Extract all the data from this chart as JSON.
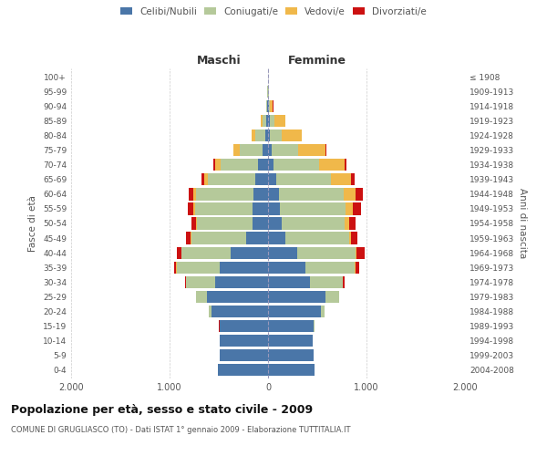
{
  "age_groups": [
    "0-4",
    "5-9",
    "10-14",
    "15-19",
    "20-24",
    "25-29",
    "30-34",
    "35-39",
    "40-44",
    "45-49",
    "50-54",
    "55-59",
    "60-64",
    "65-69",
    "70-74",
    "75-79",
    "80-84",
    "85-89",
    "90-94",
    "95-99",
    "100+"
  ],
  "birth_years": [
    "2004-2008",
    "1999-2003",
    "1994-1998",
    "1989-1993",
    "1984-1988",
    "1979-1983",
    "1974-1978",
    "1969-1973",
    "1964-1968",
    "1959-1963",
    "1954-1958",
    "1949-1953",
    "1944-1948",
    "1939-1943",
    "1934-1938",
    "1929-1933",
    "1924-1928",
    "1919-1923",
    "1914-1918",
    "1909-1913",
    "≤ 1908"
  ],
  "maschi": {
    "celibi": [
      510,
      490,
      490,
      490,
      570,
      620,
      540,
      490,
      380,
      220,
      160,
      155,
      150,
      130,
      100,
      60,
      30,
      15,
      8,
      3,
      2
    ],
    "coniugati": [
      0,
      0,
      2,
      5,
      30,
      110,
      290,
      440,
      500,
      560,
      560,
      590,
      580,
      480,
      380,
      230,
      100,
      40,
      10,
      3,
      1
    ],
    "vedovi": [
      0,
      0,
      0,
      0,
      0,
      0,
      1,
      2,
      3,
      5,
      10,
      15,
      30,
      40,
      60,
      60,
      35,
      15,
      5,
      1,
      0
    ],
    "divorziati": [
      0,
      0,
      0,
      1,
      2,
      5,
      10,
      20,
      40,
      50,
      45,
      55,
      50,
      30,
      15,
      5,
      3,
      1,
      0,
      0,
      0
    ]
  },
  "femmine": {
    "nubili": [
      470,
      460,
      450,
      460,
      540,
      580,
      430,
      380,
      300,
      180,
      140,
      120,
      110,
      80,
      60,
      35,
      20,
      15,
      8,
      3,
      2
    ],
    "coniugate": [
      0,
      0,
      2,
      10,
      35,
      140,
      330,
      500,
      590,
      640,
      640,
      670,
      660,
      560,
      460,
      270,
      120,
      50,
      12,
      3,
      1
    ],
    "vedove": [
      0,
      0,
      0,
      0,
      0,
      1,
      3,
      5,
      10,
      20,
      40,
      70,
      120,
      200,
      260,
      280,
      200,
      110,
      30,
      5,
      1
    ],
    "divorziate": [
      0,
      0,
      0,
      1,
      2,
      5,
      15,
      40,
      80,
      65,
      65,
      80,
      70,
      40,
      20,
      10,
      5,
      2,
      1,
      0,
      0
    ]
  },
  "colors": {
    "celibi": "#4a76a8",
    "coniugati": "#b5c99a",
    "vedovi": "#f0b84a",
    "divorziati": "#cc1111"
  },
  "xlim": 2000,
  "title": "Popolazione per età, sesso e stato civile - 2009",
  "subtitle": "COMUNE DI GRUGLIASCO (TO) - Dati ISTAT 1° gennaio 2009 - Elaborazione TUTTITALIA.IT",
  "xlabel_left": "Maschi",
  "xlabel_right": "Femmine",
  "ylabel_left": "Fasce di età",
  "ylabel_right": "Anni di nascita"
}
